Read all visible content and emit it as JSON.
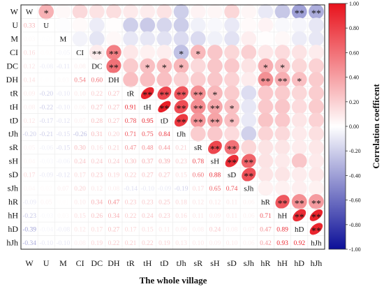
{
  "chart_data": {
    "type": "heatmap",
    "subtype": "correlation-matrix",
    "variables": [
      "W",
      "U",
      "M",
      "CI",
      "DC",
      "DH",
      "tR",
      "tH",
      "tD",
      "tJh",
      "sR",
      "sH",
      "sD",
      "sJh",
      "hR",
      "hH",
      "hD",
      "hJh"
    ],
    "lower_triangle": [
      [],
      [
        0.33
      ],
      [
        0.03,
        -0.01
      ],
      [
        0.16,
        0.02,
        -0.05
      ],
      [
        0.12,
        -0.08,
        -0.11,
        0.08
      ],
      [
        0.14,
        0.01,
        0.03,
        0.54,
        0.6
      ],
      [
        0.09,
        -0.2,
        -0.1,
        0.1,
        0.22,
        0.27
      ],
      [
        0.08,
        -0.22,
        -0.1,
        0.06,
        0.27,
        0.27,
        0.91
      ],
      [
        0.12,
        -0.17,
        -0.12,
        0.07,
        0.28,
        0.27,
        0.78,
        0.95
      ],
      [
        -0.2,
        -0.21,
        -0.15,
        -0.26,
        0.31,
        0.2,
        0.71,
        0.75,
        0.84
      ],
      [
        0.05,
        -0.06,
        -0.15,
        0.3,
        0.16,
        0.21,
        0.47,
        0.48,
        0.44,
        0.21
      ],
      [
        0.04,
        -0.03,
        -0.06,
        0.24,
        0.24,
        0.24,
        0.3,
        0.37,
        0.39,
        0.23,
        0.78
      ],
      [
        0.17,
        -0.09,
        -0.12,
        0.17,
        0.23,
        0.19,
        0.22,
        0.27,
        0.27,
        0.15,
        0.6,
        0.88
      ],
      [
        0.04,
        0.02,
        0.07,
        0.2,
        0.12,
        0.08,
        -0.14,
        -0.1,
        -0.09,
        -0.19,
        0.17,
        0.65,
        0.74
      ],
      [
        -0.09,
        0.05,
        0.01,
        0.1,
        0.34,
        0.47,
        0.23,
        0.23,
        0.25,
        0.18,
        0.12,
        0.12,
        0.11,
        0.06
      ],
      [
        -0.23,
        -0.03,
        0.03,
        0.15,
        0.26,
        0.34,
        0.22,
        0.24,
        0.23,
        0.16,
        0.11,
        0.09,
        0.11,
        0.06,
        0.71
      ],
      [
        -0.39,
        -0.04,
        -0.08,
        0.12,
        0.17,
        0.27,
        0.17,
        0.15,
        0.11,
        0.09,
        0.08,
        0.24,
        0.08,
        0.07,
        0.47,
        0.89
      ],
      [
        -0.34,
        -0.1,
        -0.1,
        0.08,
        0.19,
        0.22,
        0.21,
        0.22,
        0.19,
        0.13,
        0.1,
        0.09,
        0.1,
        0.06,
        0.42,
        0.93,
        0.92
      ]
    ],
    "significance_marks": [
      {
        "row": "W",
        "col": "U",
        "mark": "*"
      },
      {
        "row": "W",
        "col": "hD",
        "mark": "**"
      },
      {
        "row": "W",
        "col": "hJh",
        "mark": "**"
      },
      {
        "row": "CI",
        "col": "DC",
        "mark": "**"
      },
      {
        "row": "CI",
        "col": "DH",
        "mark": "**"
      },
      {
        "row": "CI",
        "col": "tJh",
        "mark": "*"
      },
      {
        "row": "CI",
        "col": "sR",
        "mark": "*"
      },
      {
        "row": "DC",
        "col": "DH",
        "mark": "**"
      },
      {
        "row": "DC",
        "col": "tH",
        "mark": "*"
      },
      {
        "row": "DC",
        "col": "tD",
        "mark": "*"
      },
      {
        "row": "DC",
        "col": "tJh",
        "mark": "*"
      },
      {
        "row": "DC",
        "col": "hR",
        "mark": "*"
      },
      {
        "row": "DC",
        "col": "hH",
        "mark": "*"
      },
      {
        "row": "DH",
        "col": "hR",
        "mark": "**"
      },
      {
        "row": "DH",
        "col": "hH",
        "mark": "**"
      },
      {
        "row": "DH",
        "col": "hD",
        "mark": "*"
      },
      {
        "row": "tR",
        "col": "tH",
        "mark": "**"
      },
      {
        "row": "tR",
        "col": "tD",
        "mark": "**"
      },
      {
        "row": "tR",
        "col": "tJh",
        "mark": "**"
      },
      {
        "row": "tR",
        "col": "sR",
        "mark": "**"
      },
      {
        "row": "tR",
        "col": "sH",
        "mark": "*"
      },
      {
        "row": "tH",
        "col": "tD",
        "mark": "**"
      },
      {
        "row": "tH",
        "col": "tJh",
        "mark": "**"
      },
      {
        "row": "tH",
        "col": "sR",
        "mark": "**"
      },
      {
        "row": "tH",
        "col": "sH",
        "mark": "**"
      },
      {
        "row": "tH",
        "col": "sD",
        "mark": "*"
      },
      {
        "row": "tD",
        "col": "tJh",
        "mark": "**"
      },
      {
        "row": "tD",
        "col": "sR",
        "mark": "**"
      },
      {
        "row": "tD",
        "col": "sH",
        "mark": "**"
      },
      {
        "row": "tD",
        "col": "sD",
        "mark": "*"
      },
      {
        "row": "sR",
        "col": "sH",
        "mark": "**"
      },
      {
        "row": "sR",
        "col": "sD",
        "mark": "**"
      },
      {
        "row": "sH",
        "col": "sD",
        "mark": "**"
      },
      {
        "row": "sH",
        "col": "sJh",
        "mark": "**"
      },
      {
        "row": "sD",
        "col": "sJh",
        "mark": "**"
      },
      {
        "row": "hR",
        "col": "hH",
        "mark": "**"
      },
      {
        "row": "hR",
        "col": "hD",
        "mark": "**"
      },
      {
        "row": "hR",
        "col": "hJh",
        "mark": "**"
      },
      {
        "row": "hH",
        "col": "hD",
        "mark": "**"
      },
      {
        "row": "hH",
        "col": "hJh",
        "mark": "**"
      },
      {
        "row": "hD",
        "col": "hJh",
        "mark": "**"
      }
    ],
    "xlabel": "The whole village",
    "colorbar": {
      "label": "Correlation coefficent",
      "ticks": [
        "1.00",
        "0.80",
        "0.60",
        "0.40",
        "0.20",
        "0.00",
        "-0.20",
        "-0.40",
        "-0.60",
        "-0.80",
        "-1.00"
      ],
      "range": [
        -1,
        1
      ],
      "color_high": "#e8121c",
      "color_mid": "#ffffff",
      "color_low": "#0c0f98"
    }
  }
}
